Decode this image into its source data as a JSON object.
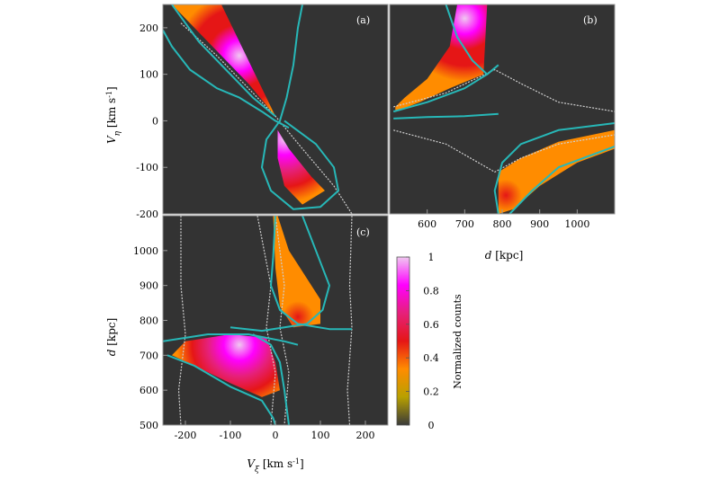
{
  "chart_data": [
    {
      "type": "heatmap",
      "panel_label": "(a)",
      "x_quantity": "V_ξ",
      "y_quantity": "V_η",
      "ylabel_main": "V",
      "ylabel_sub": "η",
      "ylabel_unit": " [km s",
      "ylabel_sup": "-1",
      "ylabel_close": "]",
      "xlim": [
        -250,
        250
      ],
      "ylim": [
        -200,
        250
      ],
      "yticks": [
        -200,
        -100,
        0,
        100,
        200
      ],
      "ytick_labels": [
        "-200",
        "-100",
        "0",
        "100",
        "200"
      ],
      "blobs": [
        {
          "polygon": [
            [
              -230,
              250
            ],
            [
              -120,
              250
            ],
            [
              -70,
              150
            ],
            [
              0,
              10
            ],
            [
              -60,
              80
            ],
            [
              -140,
              160
            ]
          ],
          "peak": [
            -80,
            140
          ],
          "peak_level": 0.95
        },
        {
          "polygon": [
            [
              5,
              -20
            ],
            [
              30,
              -60
            ],
            [
              80,
              -120
            ],
            [
              110,
              -150
            ],
            [
              60,
              -180
            ],
            [
              20,
              -140
            ],
            [
              5,
              -80
            ]
          ],
          "peak": [
            20,
            -40
          ],
          "peak_level": 1.0
        }
      ],
      "cyan_curves": [
        [
          [
            -250,
            195
          ],
          [
            -230,
            160
          ],
          [
            -190,
            110
          ],
          [
            -130,
            70
          ],
          [
            -80,
            50
          ],
          [
            -30,
            20
          ],
          [
            0,
            0
          ],
          [
            30,
            -15
          ]
        ],
        [
          [
            -230,
            250
          ],
          [
            -170,
            170
          ],
          [
            -110,
            110
          ],
          [
            -50,
            50
          ],
          [
            0,
            10
          ]
        ],
        [
          [
            60,
            250
          ],
          [
            50,
            200
          ],
          [
            40,
            120
          ],
          [
            25,
            50
          ],
          [
            10,
            0
          ],
          [
            -20,
            -40
          ],
          [
            -30,
            -100
          ],
          [
            -10,
            -150
          ],
          [
            40,
            -190
          ],
          [
            100,
            -185
          ],
          [
            140,
            -150
          ],
          [
            130,
            -100
          ],
          [
            90,
            -50
          ],
          [
            20,
            0
          ]
        ]
      ],
      "grey_curves": [
        [
          [
            -210,
            210
          ],
          [
            -130,
            140
          ],
          [
            -60,
            70
          ],
          [
            0,
            10
          ],
          [
            60,
            -60
          ],
          [
            130,
            -140
          ],
          [
            170,
            -200
          ]
        ]
      ]
    },
    {
      "type": "heatmap",
      "panel_label": "(b)",
      "x_quantity": "d",
      "y_quantity": "V_η",
      "xlabel_main": "d",
      "xlabel_unit": " [kpc]",
      "xlim": [
        500,
        1100
      ],
      "ylim": [
        -200,
        250
      ],
      "xticks": [
        600,
        700,
        800,
        900,
        1000
      ],
      "xtick_labels": [
        "600",
        "700",
        "800",
        "900",
        "1000"
      ],
      "blobs": [
        {
          "polygon": [
            [
              515,
              20
            ],
            [
              580,
              40
            ],
            [
              660,
              70
            ],
            [
              750,
              100
            ],
            [
              760,
              250
            ],
            [
              680,
              250
            ],
            [
              660,
              160
            ],
            [
              600,
              90
            ],
            [
              540,
              50
            ],
            [
              515,
              30
            ]
          ],
          "peak": [
            700,
            220
          ],
          "peak_level": 0.95
        },
        {
          "polygon": [
            [
              790,
              -110
            ],
            [
              850,
              -80
            ],
            [
              950,
              -45
            ],
            [
              1100,
              -20
            ],
            [
              1100,
              -60
            ],
            [
              1000,
              -90
            ],
            [
              900,
              -140
            ],
            [
              830,
              -190
            ],
            [
              790,
              -200
            ]
          ],
          "peak": [
            810,
            -160
          ],
          "peak_level": 0.45
        }
      ],
      "cyan_curves": [
        [
          [
            510,
            20
          ],
          [
            600,
            40
          ],
          [
            700,
            70
          ],
          [
            760,
            100
          ],
          [
            790,
            120
          ]
        ],
        [
          [
            650,
            250
          ],
          [
            680,
            180
          ],
          [
            720,
            130
          ],
          [
            760,
            100
          ]
        ],
        [
          [
            510,
            5
          ],
          [
            600,
            8
          ],
          [
            700,
            10
          ],
          [
            790,
            15
          ]
        ],
        [
          [
            790,
            -200
          ],
          [
            780,
            -150
          ],
          [
            800,
            -90
          ],
          [
            850,
            -50
          ],
          [
            950,
            -20
          ],
          [
            1100,
            -5
          ]
        ],
        [
          [
            820,
            -200
          ],
          [
            880,
            -150
          ],
          [
            950,
            -100
          ],
          [
            1100,
            -55
          ]
        ]
      ],
      "grey_curves": [
        [
          [
            510,
            30
          ],
          [
            650,
            60
          ],
          [
            780,
            110
          ],
          [
            850,
            80
          ],
          [
            950,
            40
          ],
          [
            1100,
            20
          ]
        ],
        [
          [
            510,
            -20
          ],
          [
            650,
            -50
          ],
          [
            780,
            -110
          ],
          [
            850,
            -80
          ],
          [
            950,
            -50
          ],
          [
            1100,
            -30
          ]
        ]
      ]
    },
    {
      "type": "heatmap",
      "panel_label": "(c)",
      "x_quantity": "V_ξ",
      "y_quantity": "d",
      "xlabel_main": "V",
      "xlabel_sub": "ξ",
      "xlabel_unit": " [km s",
      "xlabel_sup": "-1",
      "xlabel_close": "]",
      "ylabel_main": "d",
      "ylabel_unit": " [kpc]",
      "xlim": [
        -250,
        250
      ],
      "ylim": [
        500,
        1100
      ],
      "xticks": [
        -200,
        -100,
        0,
        100,
        200
      ],
      "xtick_labels": [
        "-200",
        "-100",
        "0",
        "100",
        "200"
      ],
      "yticks": [
        500,
        600,
        700,
        800,
        900,
        1000
      ],
      "ytick_labels": [
        "500",
        "600",
        "700",
        "800",
        "900",
        "1000"
      ],
      "blobs": [
        {
          "polygon": [
            [
              -230,
              700
            ],
            [
              -200,
              740
            ],
            [
              -100,
              760
            ],
            [
              -20,
              750
            ],
            [
              0,
              680
            ],
            [
              10,
              600
            ],
            [
              -30,
              580
            ],
            [
              -100,
              620
            ],
            [
              -180,
              670
            ]
          ],
          "peak": [
            -80,
            730
          ],
          "peak_level": 1.0
        },
        {
          "polygon": [
            [
              5,
              1100
            ],
            [
              30,
              1000
            ],
            [
              70,
              920
            ],
            [
              100,
              860
            ],
            [
              100,
              790
            ],
            [
              40,
              780
            ],
            [
              10,
              840
            ],
            [
              0,
              950
            ],
            [
              -5,
              1100
            ]
          ],
          "peak": [
            50,
            810
          ],
          "peak_level": 0.5
        }
      ],
      "cyan_curves": [
        [
          [
            -240,
            700
          ],
          [
            -180,
            670
          ],
          [
            -100,
            610
          ],
          [
            -30,
            570
          ],
          [
            -5,
            520
          ],
          [
            0,
            500
          ]
        ],
        [
          [
            -250,
            740
          ],
          [
            -150,
            760
          ],
          [
            -60,
            760
          ],
          [
            20,
            740
          ],
          [
            50,
            730
          ]
        ],
        [
          [
            0,
            1100
          ],
          [
            -5,
            980
          ],
          [
            -10,
            900
          ],
          [
            10,
            830
          ],
          [
            50,
            790
          ],
          [
            120,
            775
          ],
          [
            170,
            775
          ]
        ],
        [
          [
            60,
            1100
          ],
          [
            90,
            1000
          ],
          [
            120,
            900
          ],
          [
            105,
            830
          ],
          [
            70,
            790
          ],
          [
            -30,
            770
          ],
          [
            -100,
            780
          ]
        ],
        [
          [
            30,
            500
          ],
          [
            20,
            600
          ],
          [
            10,
            680
          ],
          [
            -10,
            730
          ],
          [
            -50,
            760
          ]
        ]
      ],
      "grey_curves": [
        [
          [
            -210,
            1100
          ],
          [
            -210,
            900
          ],
          [
            -200,
            760
          ],
          [
            -215,
            600
          ],
          [
            -210,
            500
          ]
        ],
        [
          [
            170,
            1100
          ],
          [
            165,
            900
          ],
          [
            170,
            780
          ],
          [
            160,
            600
          ],
          [
            165,
            500
          ]
        ],
        [
          [
            0,
            1100
          ],
          [
            20,
            900
          ],
          [
            10,
            780
          ],
          [
            30,
            650
          ],
          [
            20,
            500
          ]
        ],
        [
          [
            -40,
            1100
          ],
          [
            -10,
            900
          ],
          [
            -20,
            780
          ],
          [
            0,
            650
          ],
          [
            -10,
            500
          ]
        ]
      ]
    }
  ],
  "colorbar": {
    "label": "Normalized counts",
    "ticks": [
      0,
      0.2,
      0.4,
      0.6,
      0.8,
      1
    ],
    "tick_labels": [
      "0",
      "0.2",
      "0.4",
      "0.6",
      "0.8",
      "1"
    ],
    "stops": [
      "#3a3a3a",
      "#b8a000",
      "#ff8c00",
      "#e51616",
      "#e6207a",
      "#ff00ff",
      "#f0c8f0"
    ]
  },
  "colors": {
    "panel_bg": "#333333",
    "cyan_curve": "#27b8b8",
    "grey_curve": "#cfcfcf",
    "panel_border": "#9a9a9a"
  }
}
